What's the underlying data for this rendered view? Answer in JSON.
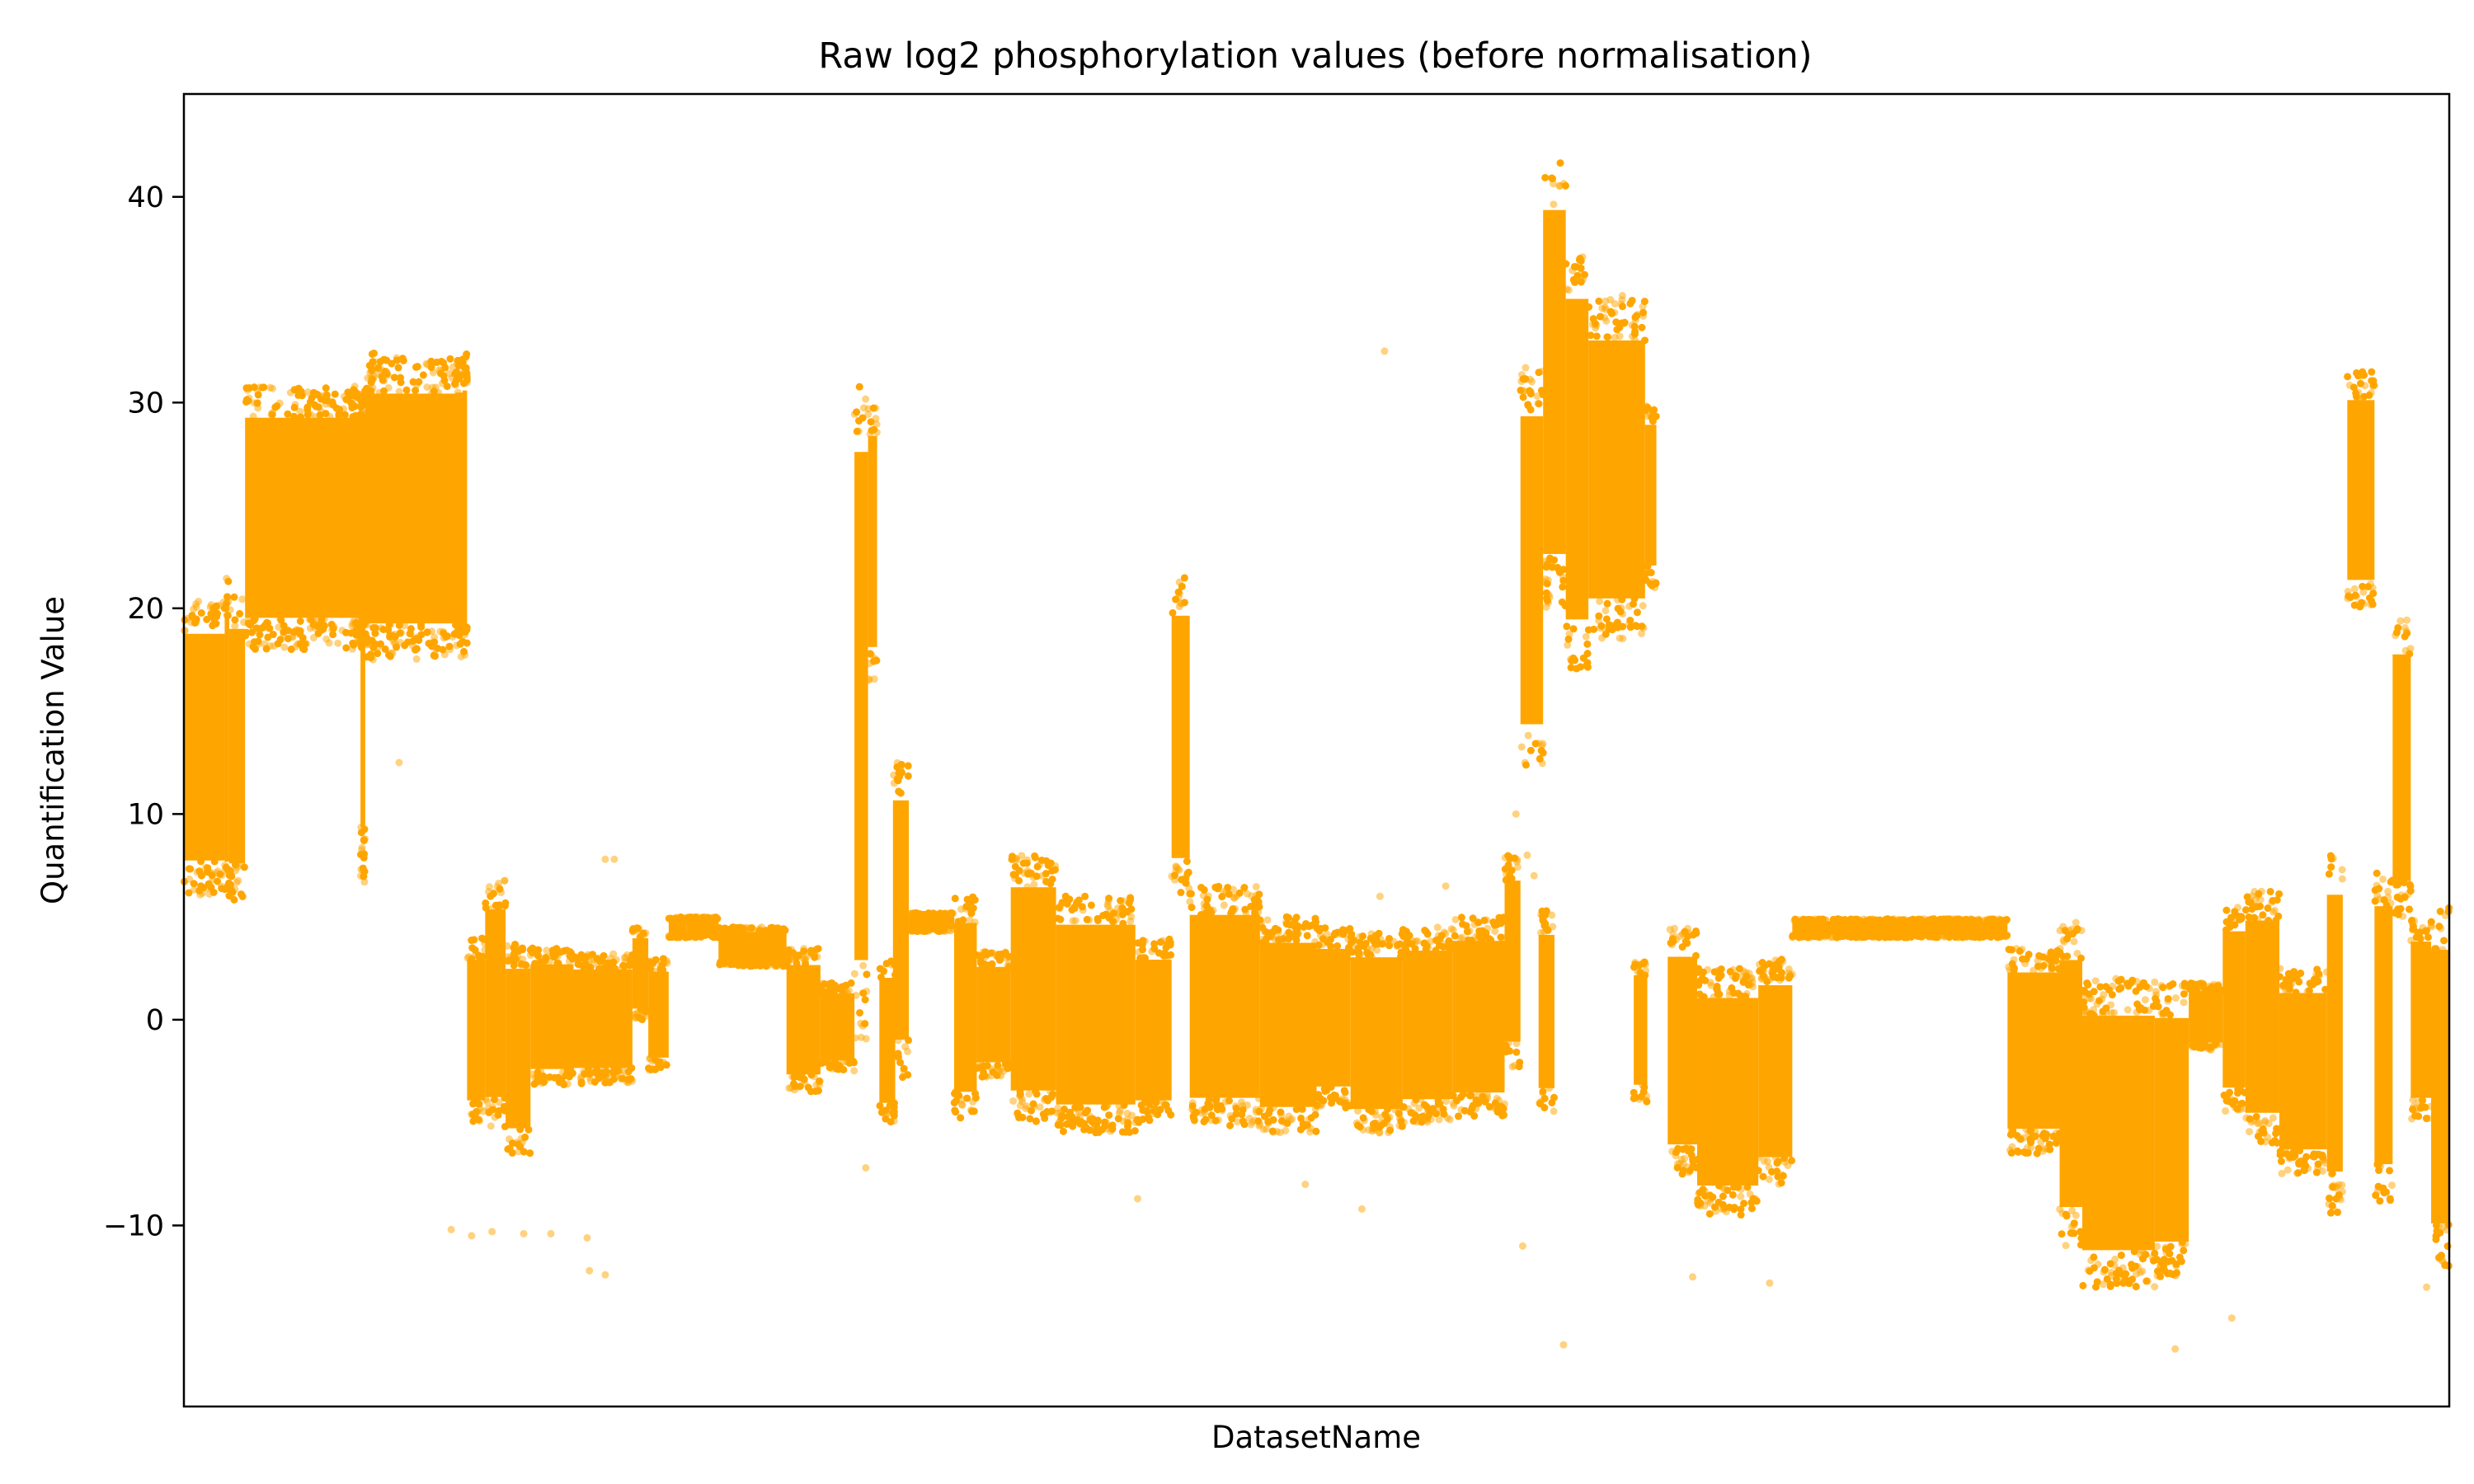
{
  "chart_data": {
    "type": "scatter",
    "title": "Raw log2 phosphorylation values (before normalisation)",
    "xlabel": "DatasetName",
    "ylabel": "Quantification Value",
    "ylim": [
      -18.8,
      45
    ],
    "yticks": [
      -10,
      0,
      10,
      20,
      30,
      40
    ],
    "ytick_labels": [
      "−10",
      "0",
      "10",
      "20",
      "30",
      "40"
    ],
    "xticks": [],
    "grid": false,
    "legend": null,
    "marker_color": "#FFA500",
    "marker_alpha": 0.5,
    "x_range": [
      0,
      1000
    ],
    "series": [
      {
        "values_summary": "one column of points per dataset; [x_start, x_end, y_low, y_high]",
        "groups": [
          [
            0,
            18,
            6,
            20.5
          ],
          [
            18,
            20,
            5.8,
            21.5
          ],
          [
            20,
            27,
            5.8,
            20.8
          ],
          [
            27,
            80,
            18,
            30.8
          ],
          [
            80,
            122,
            17.5,
            32.2
          ],
          [
            78,
            80,
            6.5,
            30.5
          ],
          [
            78,
            80,
            6.5,
            30.5
          ],
          [
            82,
            84,
            17.5,
            32.5
          ],
          [
            120,
            124,
            17.2,
            32.3
          ],
          [
            77,
            79,
            18,
            30.5
          ],
          [
            79,
            81,
            18.1,
            30.7
          ],
          [
            123,
            125,
            17.3,
            32.4
          ],
          [
            125,
            133,
            -5,
            4
          ],
          [
            133,
            142,
            -5.2,
            6.8
          ],
          [
            142,
            153,
            -6.5,
            3.7
          ],
          [
            153,
            172,
            -3.2,
            3.5
          ],
          [
            172,
            198,
            -3.1,
            3.2
          ],
          [
            198,
            205,
            0,
            4.5
          ],
          [
            205,
            214,
            -2.5,
            3
          ],
          [
            214,
            222,
            4,
            5
          ],
          [
            222,
            236,
            4,
            5
          ],
          [
            236,
            266,
            2.6,
            4.5
          ],
          [
            266,
            281,
            -3.5,
            3.5
          ],
          [
            281,
            296,
            -2.5,
            1.8
          ],
          [
            296,
            302,
            -1,
            31.5
          ],
          [
            302,
            306,
            16.5,
            30
          ],
          [
            307,
            314,
            -5,
            3
          ],
          [
            313,
            320,
            -2.8,
            12.5
          ],
          [
            320,
            340,
            4.3,
            5.2
          ],
          [
            340,
            350,
            -4.8,
            6
          ],
          [
            350,
            365,
            -2.8,
            3.3
          ],
          [
            365,
            385,
            -5,
            8
          ],
          [
            385,
            420,
            -5.5,
            6
          ],
          [
            420,
            436,
            -5,
            4
          ],
          [
            436,
            444,
            6,
            21.5
          ],
          [
            444,
            475,
            -5.2,
            6.5
          ],
          [
            475,
            500,
            -5.5,
            5
          ],
          [
            500,
            515,
            -4.3,
            4.5
          ],
          [
            515,
            538,
            -5.5,
            4.2
          ],
          [
            538,
            560,
            -5,
            4.5
          ],
          [
            560,
            583,
            -4.7,
            5
          ],
          [
            583,
            590,
            -2.3,
            8
          ],
          [
            590,
            600,
            12,
            31.7
          ],
          [
            598,
            605,
            -4.5,
            5.3
          ],
          [
            600,
            610,
            20,
            42
          ],
          [
            610,
            620,
            17,
            37.5
          ],
          [
            620,
            645,
            18.5,
            35
          ],
          [
            645,
            650,
            21,
            30
          ],
          [
            640,
            646,
            -4,
            3
          ],
          [
            655,
            668,
            -7.5,
            4.5
          ],
          [
            668,
            695,
            -9.5,
            2.5
          ],
          [
            695,
            710,
            -8,
            3
          ],
          [
            710,
            805,
            4,
            4.9
          ],
          [
            805,
            828,
            -6.5,
            3.5
          ],
          [
            828,
            838,
            -11,
            4.8
          ],
          [
            838,
            870,
            -13,
            2
          ],
          [
            870,
            885,
            -12.5,
            1.8
          ],
          [
            885,
            900,
            -1.5,
            1.8
          ],
          [
            900,
            910,
            -4.5,
            5.5
          ],
          [
            910,
            925,
            -6,
            6.3
          ],
          [
            925,
            946,
            -7.5,
            2.5
          ],
          [
            946,
            953,
            -9.5,
            8.2
          ],
          [
            955,
            967,
            20,
            31.5
          ],
          [
            967,
            975,
            -9,
            7.5
          ],
          [
            975,
            983,
            5,
            19.5
          ],
          [
            983,
            992,
            -5,
            5
          ],
          [
            992,
            1000,
            -12,
            5.5
          ]
        ],
        "outliers": [
          [
            95,
            12.5
          ],
          [
            118,
            -10.2
          ],
          [
            127,
            -10.5
          ],
          [
            136,
            -10.3
          ],
          [
            150,
            -10.4
          ],
          [
            162,
            -10.4
          ],
          [
            178,
            -10.6
          ],
          [
            179,
            -12.2
          ],
          [
            186,
            7.8
          ],
          [
            190,
            7.8
          ],
          [
            186,
            -12.4
          ],
          [
            230,
            5
          ],
          [
            255,
            4.5
          ],
          [
            301,
            -7.2
          ],
          [
            421,
            -8.7
          ],
          [
            495,
            -8
          ],
          [
            520,
            -9.2
          ],
          [
            528,
            6
          ],
          [
            530,
            32.5
          ],
          [
            557,
            6.5
          ],
          [
            588,
            10
          ],
          [
            591,
            -11
          ],
          [
            593,
            8
          ],
          [
            596,
            7
          ],
          [
            609,
            -15.8
          ],
          [
            635,
            35.2
          ],
          [
            666,
            -12.5
          ],
          [
            700,
            -12.8
          ],
          [
            879,
            -16
          ],
          [
            904,
            -14.5
          ],
          [
            948,
            -7.5
          ],
          [
            990,
            -13
          ]
        ]
      }
    ]
  }
}
